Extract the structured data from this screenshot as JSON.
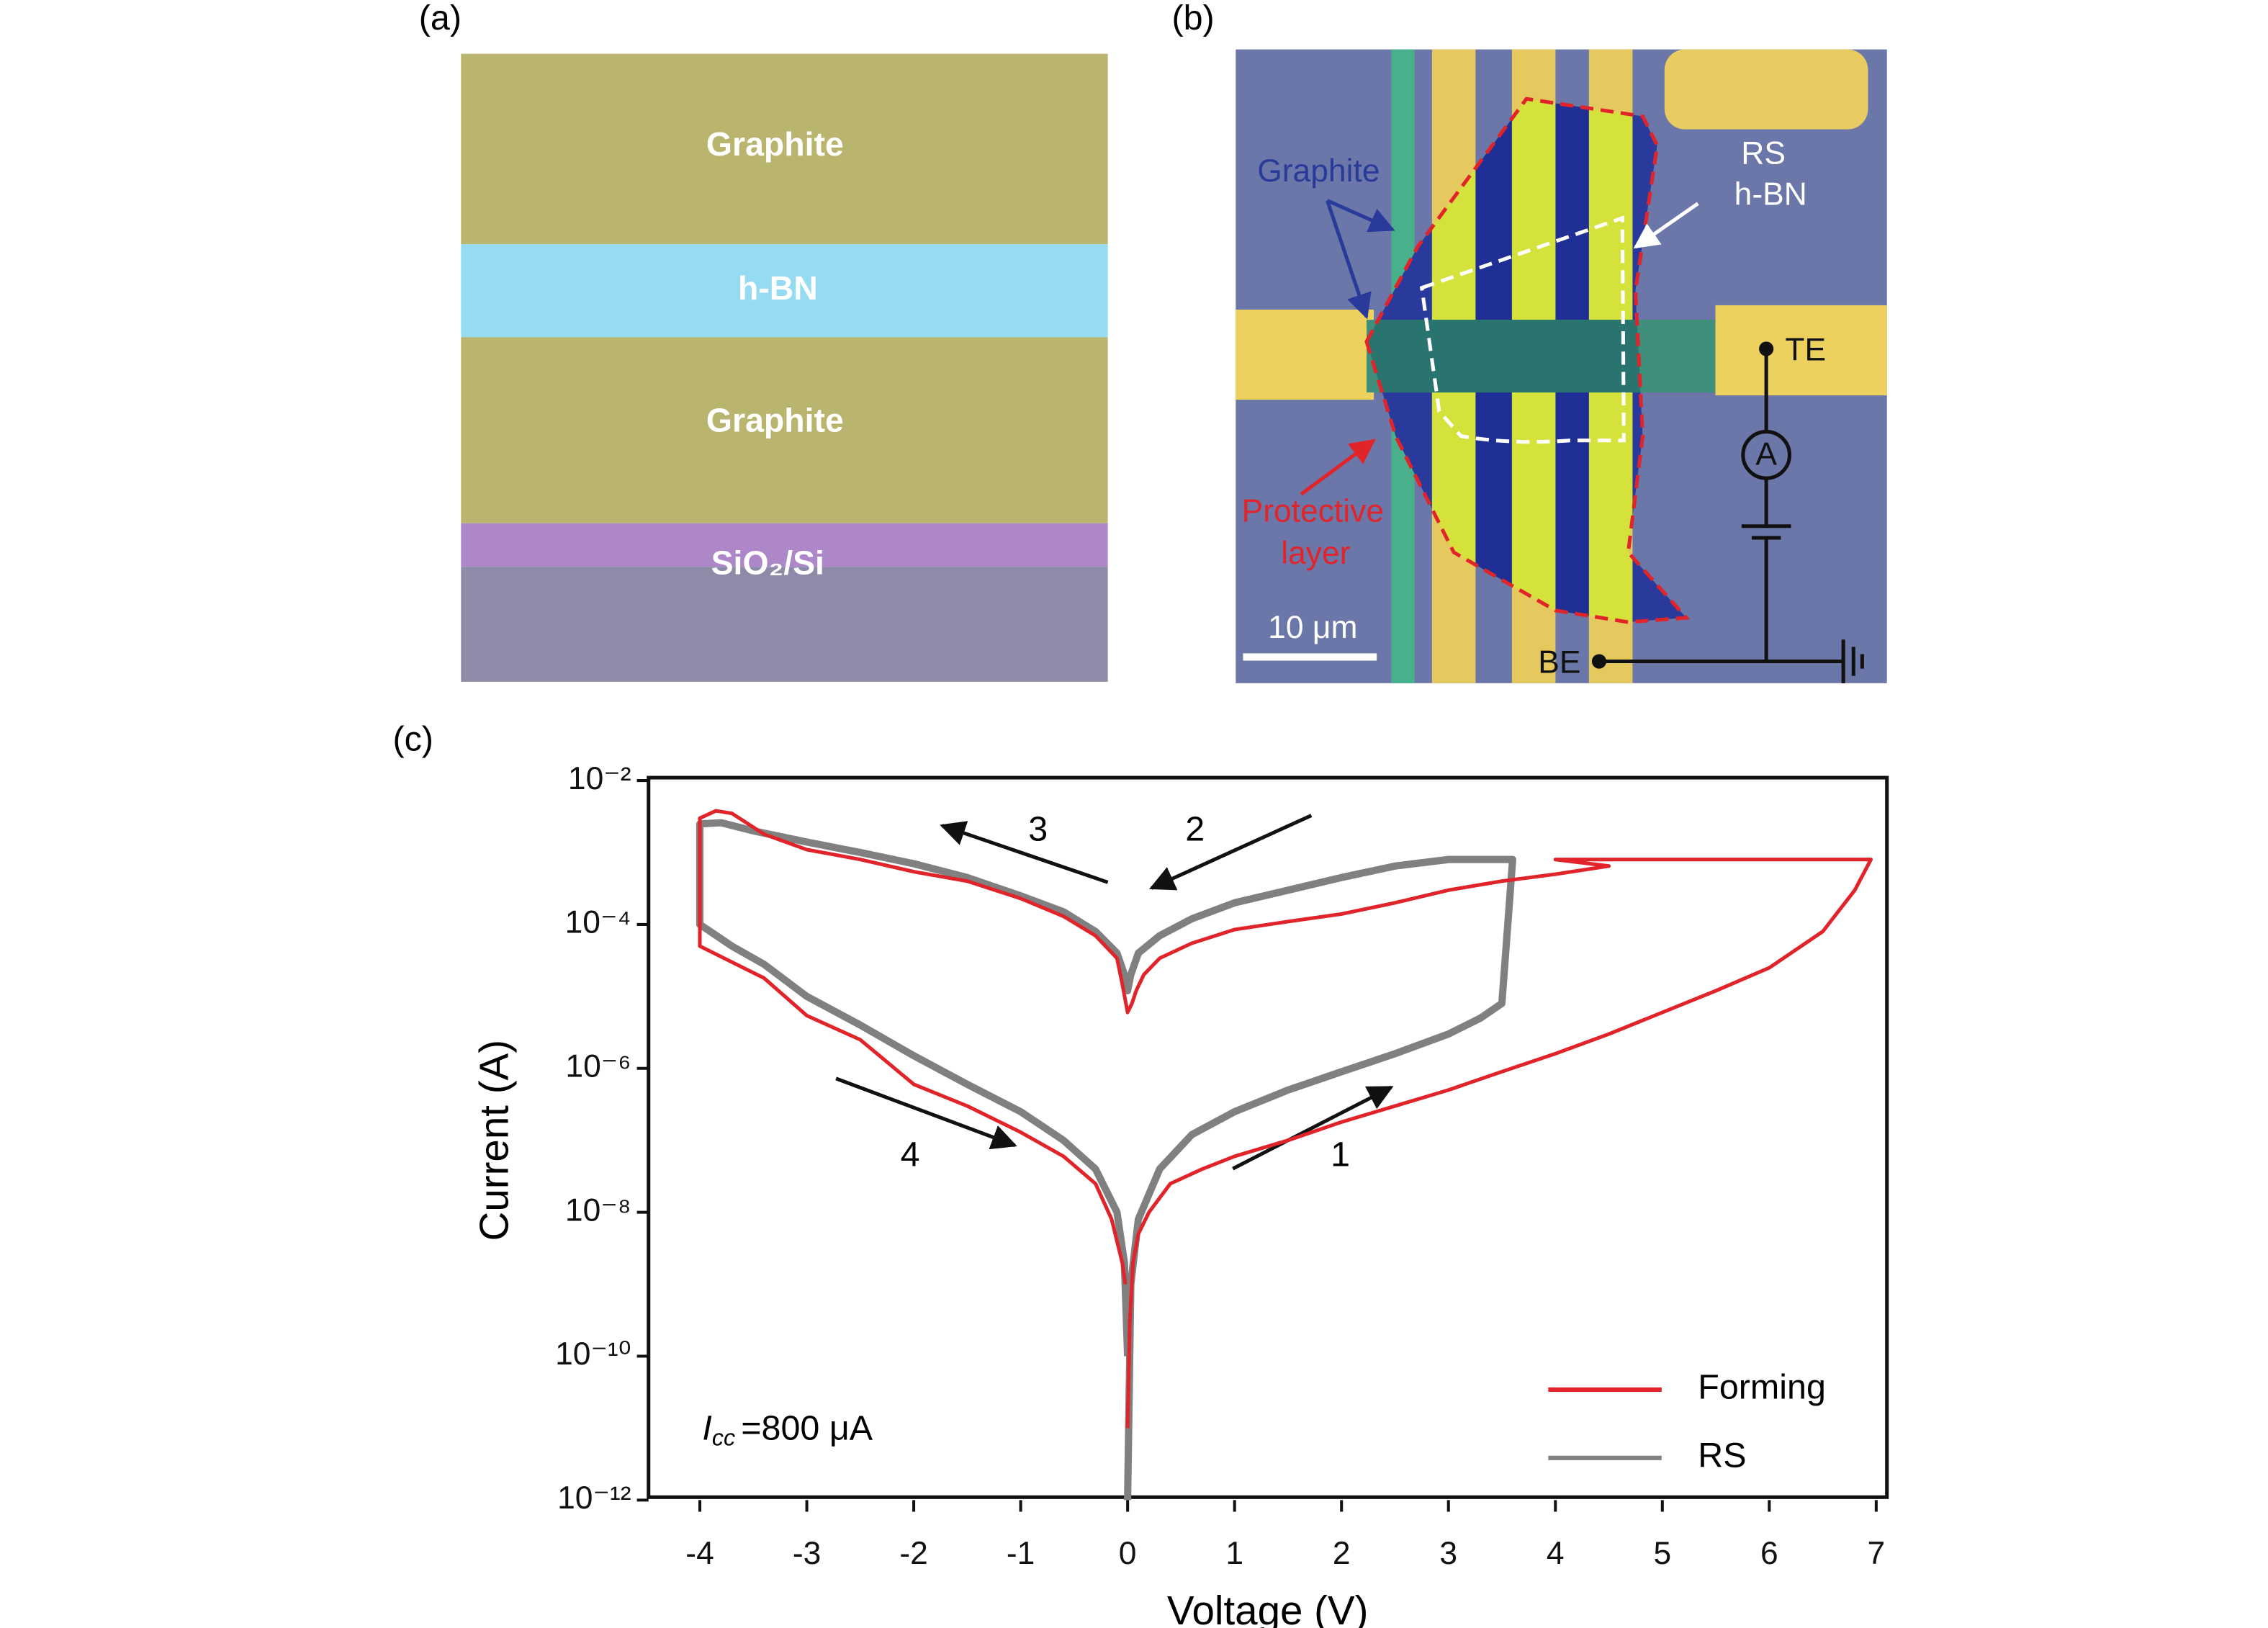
{
  "panel_a": {
    "label": "(a)",
    "layers": [
      "Graphite",
      "h-BN",
      "Graphite",
      "SiO₂/Si"
    ]
  },
  "panel_b": {
    "label": "(b)",
    "graphite": "Graphite",
    "rs": "RS",
    "hbn": "h-BN",
    "te": "TE",
    "be": "BE",
    "ammeter": "A",
    "protective": "Protective",
    "layer": "layer",
    "scale": "10 μm"
  },
  "chart_data": {
    "type": "line",
    "label": "(c)",
    "xlabel": "Voltage (V)",
    "ylabel": "Current (A)",
    "log_y": true,
    "grid": false,
    "legend": "lower right",
    "xlim": [
      -4.48,
      7.1
    ],
    "xticks": [
      -4,
      -3,
      -2,
      -1,
      0,
      1,
      2,
      3,
      4,
      5,
      6,
      7
    ],
    "ylim": [
      1e-12,
      0.01
    ],
    "yticks": [
      {
        "value": 0.01,
        "label": "10⁻²"
      },
      {
        "value": 0.0001,
        "label": "10⁻⁴"
      },
      {
        "value": 1e-06,
        "label": "10⁻⁶"
      },
      {
        "value": 1e-08,
        "label": "10⁻⁸"
      },
      {
        "value": 1e-10,
        "label": "10⁻¹⁰"
      },
      {
        "value": 1e-12,
        "label": "10⁻¹²"
      }
    ],
    "annotations": [
      "3",
      "2",
      "4",
      "1"
    ],
    "icc": {
      "symbol": "I",
      "subscript": "cc",
      "text": "=800 μA"
    },
    "series": [
      {
        "name": "RS",
        "color": "#808080",
        "x": [
          0,
          0.03,
          0.1,
          0.3,
          0.6,
          1,
          1.5,
          2,
          2.5,
          3,
          3.3,
          3.5,
          3.6,
          3.3,
          3,
          2.5,
          2,
          1.5,
          1,
          0.6,
          0.3,
          0.1,
          0.03,
          0,
          -0.03,
          -0.1,
          -0.3,
          -0.6,
          -1,
          -1.5,
          -2,
          -2.5,
          -3,
          -3.5,
          -3.8,
          -4,
          -4,
          -3.7,
          -3.4,
          -3,
          -2.5,
          -2,
          -1.5,
          -1,
          -0.6,
          -0.3,
          -0.1,
          -0.03,
          0
        ],
        "values": [
          1e-12,
          1e-09,
          8e-09,
          4e-08,
          1.2e-07,
          2.5e-07,
          5e-07,
          9e-07,
          1.6e-06,
          3e-06,
          5e-06,
          8e-06,
          0.0008,
          0.0008,
          0.0008,
          0.00065,
          0.00045,
          0.0003,
          0.0002,
          0.00012,
          7e-05,
          4e-05,
          2e-05,
          1.2e-05,
          2e-05,
          4e-05,
          8e-05,
          0.00015,
          0.00025,
          0.00045,
          0.0007,
          0.001,
          0.0014,
          0.002,
          0.0026,
          0.0025,
          0.0001,
          5e-05,
          2.8e-05,
          1e-05,
          4e-06,
          1.5e-06,
          6e-07,
          2.5e-07,
          1e-07,
          4e-08,
          1e-08,
          2e-09,
          1e-10
        ]
      },
      {
        "name": "Forming",
        "color": "#e0242a",
        "x": [
          0,
          0.02,
          0.05,
          0.1,
          0.2,
          0.4,
          0.7,
          1,
          1.5,
          2,
          2.5,
          3,
          3.5,
          4,
          4.5,
          5,
          5.5,
          6,
          6.5,
          6.8,
          6.95,
          4,
          4.5,
          4,
          3.5,
          3,
          2.5,
          2,
          1.5,
          1,
          0.6,
          0.3,
          0.15,
          0.08,
          0.04,
          0,
          -0.05,
          -0.1,
          -0.3,
          -0.6,
          -1,
          -1.5,
          -2,
          -2.5,
          -3,
          -3.4,
          -3.7,
          -3.85,
          -4,
          -4,
          -3.7,
          -3.4,
          -3,
          -2.5,
          -2,
          -1.5,
          -1,
          -0.6,
          -0.3,
          -0.15,
          -0.05,
          -0.02
        ],
        "values": [
          1e-11,
          3e-10,
          2e-09,
          5e-09,
          1e-08,
          2.5e-08,
          4e-08,
          6e-08,
          1e-07,
          1.8e-07,
          3e-07,
          5e-07,
          9e-07,
          1.6e-06,
          3e-06,
          6e-06,
          1.2e-05,
          2.5e-05,
          8e-05,
          0.0003,
          0.0008,
          0.0008,
          0.00065,
          0.0005,
          0.0004,
          0.0003,
          0.0002,
          0.00014,
          0.00011,
          8.5e-05,
          5.5e-05,
          3.4e-05,
          2e-05,
          1.2e-05,
          8e-06,
          6e-06,
          1.5e-05,
          3.4e-05,
          7e-05,
          0.00013,
          0.00023,
          0.0004,
          0.00054,
          0.0008,
          0.0011,
          0.0018,
          0.0035,
          0.0038,
          0.003,
          5e-05,
          3e-05,
          1.8e-05,
          5.4e-06,
          2.5e-06,
          6e-07,
          3e-07,
          1.3e-07,
          6e-08,
          2.5e-08,
          8e-09,
          2e-09,
          1e-09
        ]
      }
    ]
  }
}
